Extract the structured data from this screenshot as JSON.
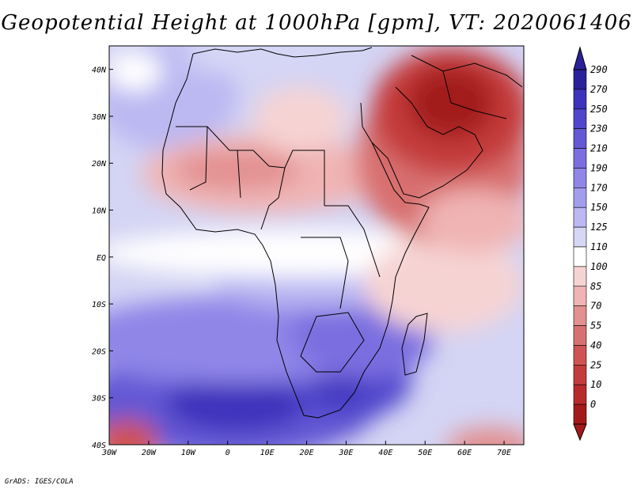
{
  "title": "Geopotential Height at 1000hPa [gpm], VT: 2020061406",
  "footer": "GrADS: IGES/COLA",
  "map": {
    "variable": "Geopotential Height 1000hPa",
    "units": "gpm",
    "valid_time": "2020061406",
    "lon_range": [
      -30,
      75
    ],
    "lat_range": [
      -40,
      45
    ],
    "lon_ticks": [
      "30W",
      "20W",
      "10W",
      "0",
      "10E",
      "20E",
      "30E",
      "40E",
      "50E",
      "60E",
      "70E"
    ],
    "lat_ticks": [
      "40N",
      "30N",
      "20N",
      "10N",
      "EQ",
      "10S",
      "20S",
      "30S",
      "40S"
    ],
    "region_description": "Africa, Arabian Peninsula and Middle East",
    "high_height_region": "Southern Africa / South Atlantic (~230-270 gpm)",
    "low_height_region": "Arabian Peninsula / Persian Gulf (~0-40 gpm)"
  },
  "colorbar": {
    "levels": [
      "290",
      "270",
      "250",
      "230",
      "210",
      "190",
      "170",
      "150",
      "125",
      "110",
      "100",
      "85",
      "70",
      "55",
      "40",
      "25",
      "10",
      "0"
    ],
    "colors": [
      "#2b2199",
      "#3d32bb",
      "#5046cc",
      "#6458d4",
      "#7a6ee0",
      "#8f86e8",
      "#a39ded",
      "#bbb8f2",
      "#d6d6f6",
      "#ffffff",
      "#f6d3d3",
      "#f0b4b4",
      "#e29090",
      "#d87070",
      "#cf5353",
      "#c43b3b",
      "#b82a2a",
      "#a31a1a"
    ]
  }
}
